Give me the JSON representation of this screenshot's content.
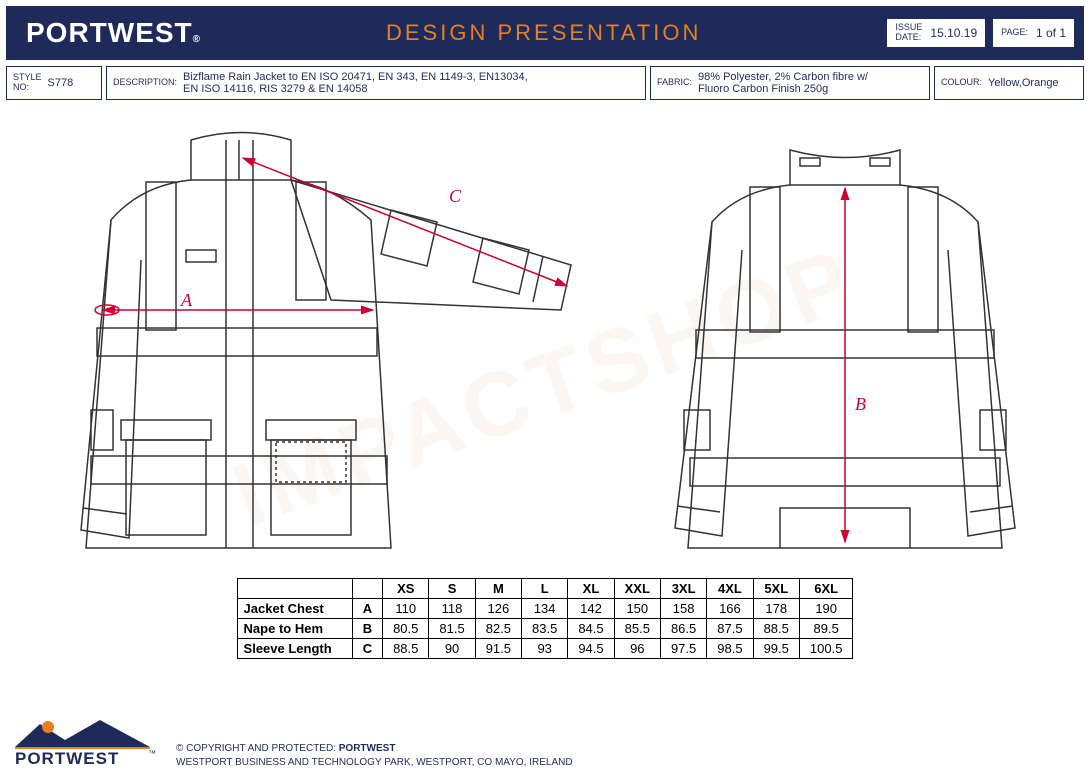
{
  "header": {
    "brand": "PORTWEST",
    "brand_sub": "®",
    "title": "DESIGN PRESENTATION",
    "issue_date_lbl": "ISSUE\nDATE:",
    "issue_date": "15.10.19",
    "page_lbl": "PAGE:",
    "page": "1 of 1"
  },
  "info": {
    "style_lbl": "STYLE\nNO:",
    "style": "S778",
    "desc_lbl": "DESCRIPTION:",
    "desc": "Bizflame Rain Jacket to EN ISO 20471, EN 343, EN 1149-3, EN13034,\nEN ISO 14116, RIS 3279 & EN 14058",
    "fabric_lbl": "FABRIC:",
    "fabric": "98% Polyester, 2% Carbon fibre w/\nFluoro Carbon Finish 250g",
    "colour_lbl": "COLOUR:",
    "colour": "Yellow,Orange"
  },
  "measurements": {
    "labels": {
      "a": "A",
      "b": "B",
      "c": "C"
    }
  },
  "size_table": {
    "sizes": [
      "XS",
      "S",
      "M",
      "L",
      "XL",
      "XXL",
      "3XL",
      "4XL",
      "5XL",
      "6XL"
    ],
    "rows": [
      {
        "name": "Jacket Chest",
        "code": "A",
        "values": [
          110,
          118,
          126,
          134,
          142,
          150,
          158,
          166,
          178,
          190
        ]
      },
      {
        "name": "Nape to Hem",
        "code": "B",
        "values": [
          80.5,
          81.5,
          82.5,
          83.5,
          84.5,
          85.5,
          86.5,
          87.5,
          88.5,
          89.5
        ]
      },
      {
        "name": "Sleeve Length",
        "code": "C",
        "values": [
          88.5,
          90,
          91.5,
          93,
          94.5,
          96,
          97.5,
          98.5,
          99.5,
          100.5
        ]
      }
    ]
  },
  "footer": {
    "brand": "PORTWEST",
    "tm": "™",
    "copyright_prefix": "© COPYRIGHT AND PROTECTED: ",
    "copyright_brand": "PORTWEST",
    "address": "WESTPORT BUSINESS AND TECHNOLOGY PARK, WESTPORT, CO MAYO, IRELAND"
  },
  "watermark": "IMPACTSHOP",
  "colors": {
    "navy": "#1e2a5a",
    "orange": "#e67e22",
    "arrow": "#cc0033"
  }
}
